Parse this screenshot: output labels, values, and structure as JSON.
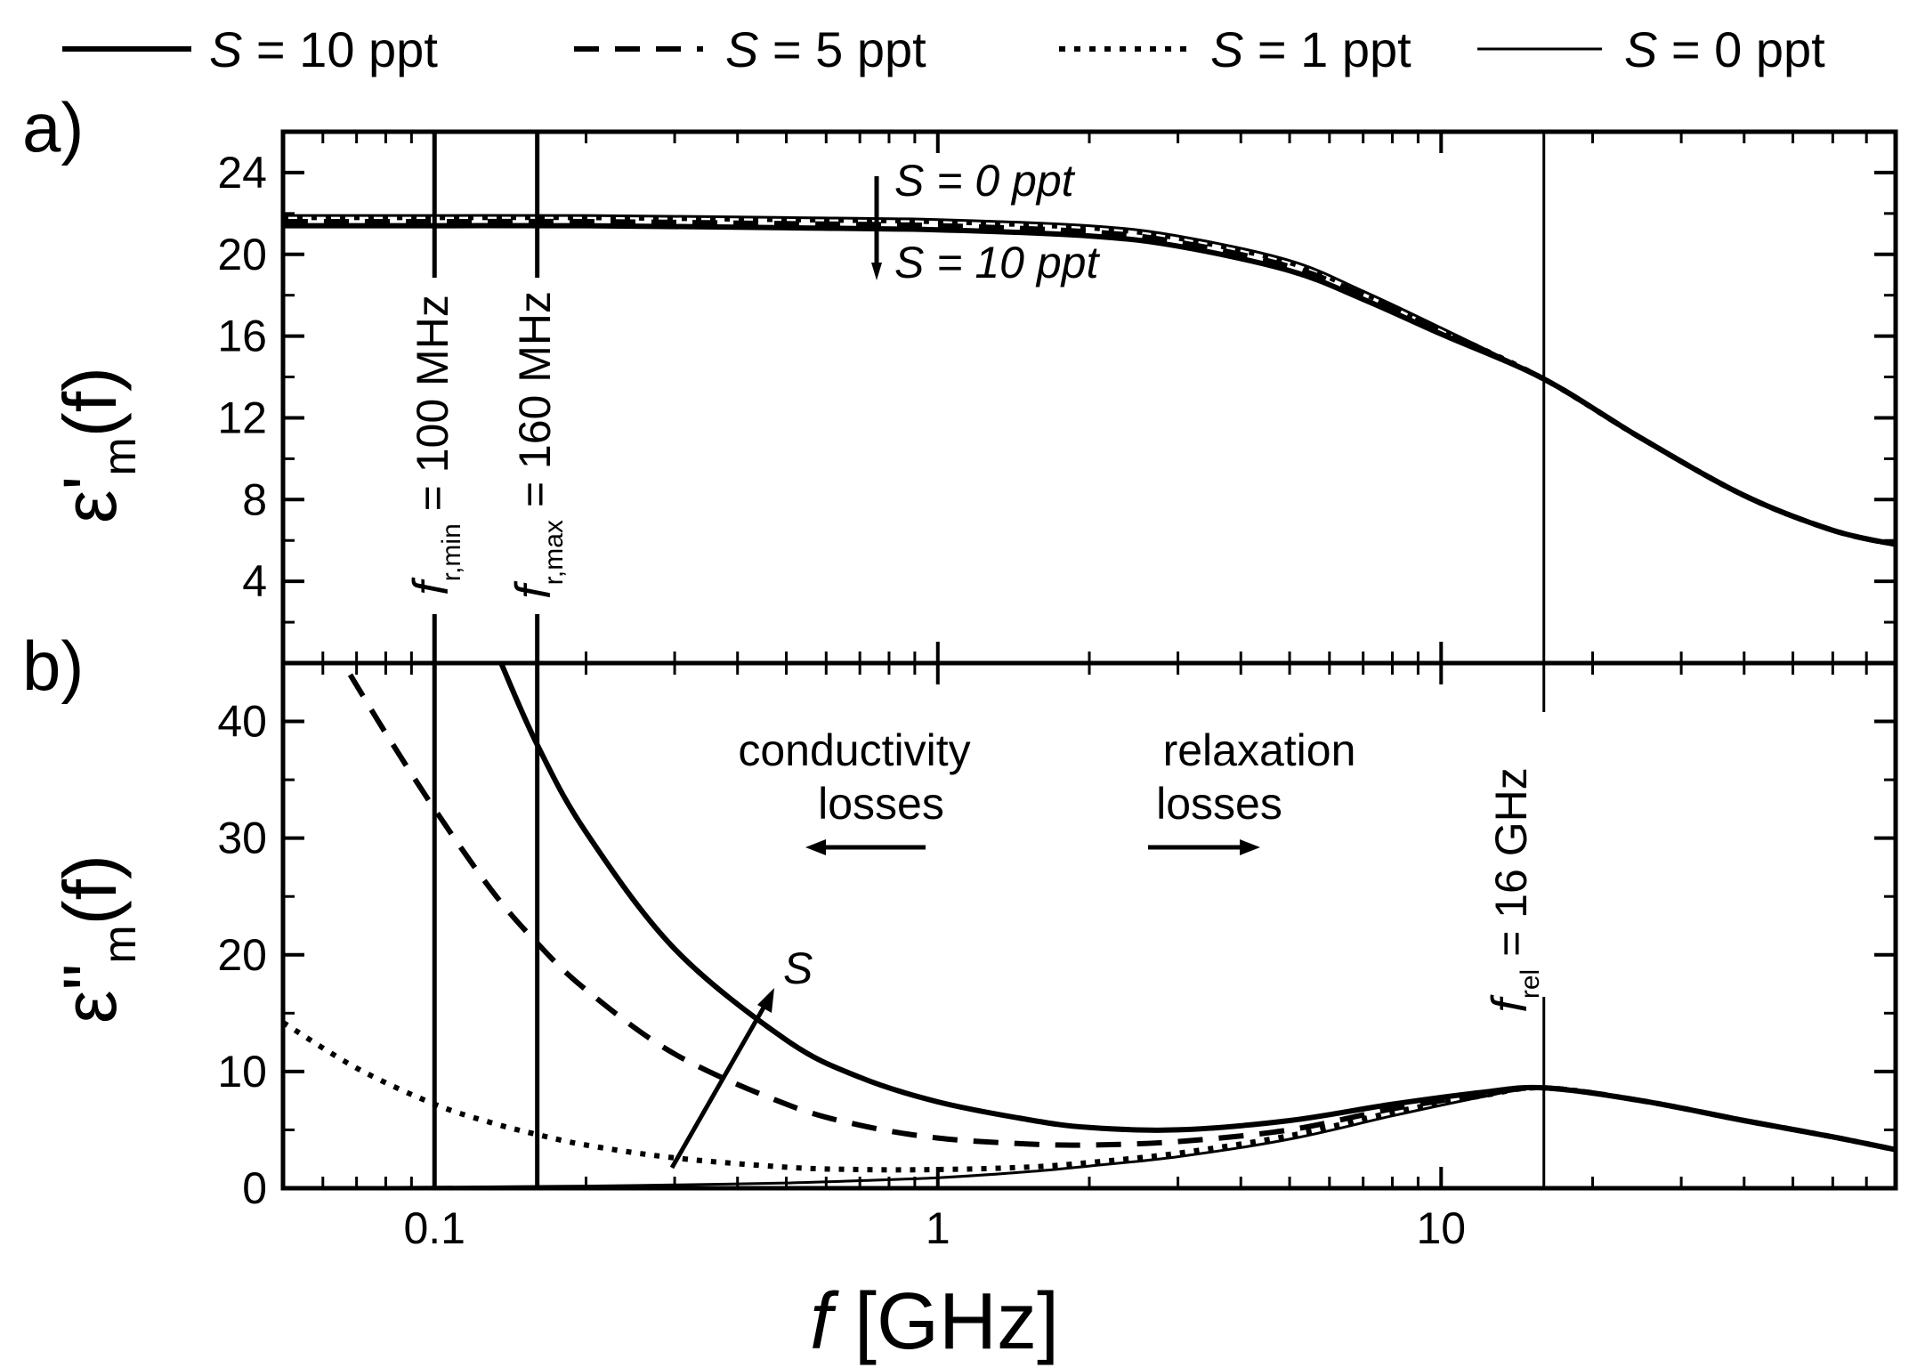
{
  "chart_data": [
    {
      "panel": "a)",
      "type": "line",
      "ylabel": "ε'm(f)",
      "ylabel_main": "ε'",
      "ylabel_sub": "m",
      "ylabel_paren": "(f)",
      "xscale": "log",
      "xlim": [
        0.05,
        80
      ],
      "ylim": [
        0,
        26
      ],
      "yticks": [
        4,
        8,
        12,
        16,
        20,
        24
      ],
      "ytick_labels": [
        "4",
        "8",
        "12",
        "16",
        "20",
        "24"
      ],
      "series": [
        {
          "name": "S = 10 ppt",
          "style": "solid",
          "x": [
            0.05,
            0.1,
            0.2,
            0.5,
            1,
            2,
            3,
            5,
            7,
            10,
            16,
            25,
            40,
            60,
            80
          ],
          "y": [
            21.4,
            21.4,
            21.4,
            21.3,
            21.2,
            20.9,
            20.4,
            19.2,
            17.8,
            16.1,
            13.9,
            11.0,
            8.2,
            6.5,
            5.8
          ]
        },
        {
          "name": "S = 5 ppt",
          "style": "dashed",
          "x": [
            0.05,
            0.1,
            0.2,
            0.5,
            1,
            2,
            3,
            5,
            7,
            10,
            16,
            25,
            40,
            60,
            80
          ],
          "y": [
            21.6,
            21.6,
            21.6,
            21.5,
            21.4,
            21.1,
            20.6,
            19.4,
            18.0,
            16.2,
            13.9,
            11.0,
            8.2,
            6.5,
            5.8
          ]
        },
        {
          "name": "S = 1 ppt",
          "style": "dotted",
          "x": [
            0.05,
            0.1,
            0.2,
            0.5,
            1,
            2,
            3,
            5,
            7,
            10,
            16,
            25,
            40,
            60,
            80
          ],
          "y": [
            21.8,
            21.8,
            21.8,
            21.7,
            21.6,
            21.3,
            20.8,
            19.6,
            18.1,
            16.3,
            13.9,
            11.0,
            8.2,
            6.5,
            5.8
          ]
        },
        {
          "name": "S = 0 ppt",
          "style": "thin",
          "x": [
            0.05,
            0.1,
            0.2,
            0.5,
            1,
            2,
            3,
            5,
            7,
            10,
            16,
            25,
            40,
            60,
            80
          ],
          "y": [
            21.9,
            21.9,
            21.9,
            21.8,
            21.7,
            21.4,
            20.9,
            19.7,
            18.2,
            16.4,
            13.9,
            11.0,
            8.2,
            6.5,
            5.8
          ]
        }
      ],
      "vlines": [
        0.1,
        0.16,
        16
      ],
      "annotations": [
        {
          "text": "f_r,min = 100 MHz",
          "main": "f",
          "sub": "r,min",
          "rest": " = 100 MHz"
        },
        {
          "text": "f_r,max = 160 MHz",
          "main": "f",
          "sub": "r,max",
          "rest": " = 160 MHz"
        },
        {
          "s_top": "S = 0 ppt",
          "s_bottom": "S = 10 ppt"
        }
      ]
    },
    {
      "panel": "b)",
      "type": "line",
      "ylabel": "ε\"m(f)",
      "ylabel_main": "ε\"",
      "ylabel_sub": "m",
      "ylabel_paren": "(f)",
      "xlabel": "f [GHz]",
      "xlabel_f": "f",
      "xlabel_unit": " [GHz]",
      "xscale": "log",
      "xlim": [
        0.05,
        80
      ],
      "ylim": [
        0,
        45
      ],
      "xticks": [
        0.1,
        1,
        10
      ],
      "xtick_labels": [
        "0.1",
        "1",
        "10"
      ],
      "yticks": [
        0,
        10,
        20,
        30,
        40
      ],
      "ytick_labels": [
        "0",
        "10",
        "20",
        "30",
        "40"
      ],
      "series": [
        {
          "name": "S = 10 ppt",
          "style": "solid",
          "x": [
            0.135,
            0.16,
            0.2,
            0.3,
            0.5,
            0.7,
            1,
            1.5,
            2,
            3,
            5,
            8,
            12,
            16,
            25,
            40,
            60,
            80
          ],
          "y": [
            45.2,
            38.0,
            30.5,
            20.5,
            12.7,
            9.5,
            7.4,
            5.9,
            5.2,
            5.0,
            5.8,
            7.2,
            8.2,
            8.6,
            7.5,
            5.8,
            4.4,
            3.3
          ]
        },
        {
          "name": "S = 5 ppt",
          "style": "dashed",
          "x": [
            0.068,
            0.08,
            0.1,
            0.13,
            0.16,
            0.2,
            0.3,
            0.5,
            0.7,
            1,
            1.5,
            2,
            3,
            5,
            8,
            12,
            16,
            25,
            40,
            60,
            80
          ],
          "y": [
            44.0,
            39.0,
            32.5,
            25.5,
            21.0,
            17.0,
            11.5,
            7.2,
            5.4,
            4.3,
            3.8,
            3.7,
            4.0,
            5.0,
            6.8,
            8.0,
            8.6,
            7.5,
            5.8,
            4.4,
            3.3
          ]
        },
        {
          "name": "S = 1 ppt",
          "style": "dotted",
          "x": [
            0.05,
            0.07,
            0.1,
            0.13,
            0.16,
            0.2,
            0.3,
            0.5,
            0.7,
            1,
            1.5,
            2,
            3,
            5,
            8,
            12,
            16,
            25,
            40,
            60,
            80
          ],
          "y": [
            14.2,
            10.3,
            7.2,
            5.6,
            4.6,
            3.7,
            2.6,
            1.8,
            1.6,
            1.6,
            1.8,
            2.2,
            3.0,
            4.5,
            6.5,
            7.9,
            8.6,
            7.5,
            5.8,
            4.4,
            3.3
          ]
        },
        {
          "name": "S = 0 ppt",
          "style": "thin",
          "x": [
            0.05,
            0.1,
            0.2,
            0.3,
            0.5,
            0.7,
            1,
            1.5,
            2,
            3,
            5,
            8,
            12,
            16,
            25,
            40,
            60,
            80
          ],
          "y": [
            0.04,
            0.09,
            0.18,
            0.28,
            0.45,
            0.65,
            0.9,
            1.4,
            1.9,
            2.7,
            4.2,
            6.2,
            7.8,
            8.6,
            7.5,
            5.8,
            4.4,
            3.3
          ]
        }
      ],
      "vlines": [
        0.1,
        0.16,
        16
      ],
      "annotations": [
        {
          "line1": "conductivity",
          "line2": "losses"
        },
        {
          "line1": "relaxation",
          "line2": "losses"
        },
        {
          "arrow_label": "S"
        },
        {
          "text": "f_rel = 16 GHz",
          "main": "f",
          "sub": "rel",
          "rest": " = 16 GHz"
        }
      ]
    }
  ],
  "legend": {
    "placement": "top",
    "items": [
      {
        "prefix": "S",
        "rest": " = 10 ppt",
        "style": "solid"
      },
      {
        "prefix": "S",
        "rest": " = 5 ppt",
        "style": "dashed"
      },
      {
        "prefix": "S",
        "rest": " = 1 ppt",
        "style": "dotted"
      },
      {
        "prefix": "S",
        "rest": " = 0 ppt",
        "style": "thin"
      }
    ]
  }
}
